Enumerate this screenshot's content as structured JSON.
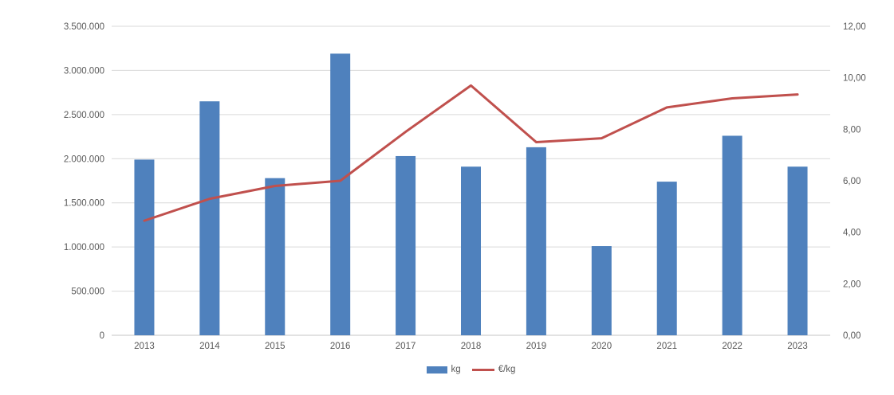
{
  "chart_data": {
    "type": "bar",
    "subtype": "combo-bar-line",
    "title": "",
    "xlabel": "",
    "ylabel_left": "kg",
    "ylabel_right": "€/kg",
    "categories": [
      "2013",
      "2014",
      "2015",
      "2016",
      "2017",
      "2018",
      "2019",
      "2020",
      "2021",
      "2022",
      "2023"
    ],
    "series": [
      {
        "name": "kg",
        "type": "bar",
        "axis": "left",
        "color": "#4f81bd",
        "values": [
          1990000,
          2650000,
          1780000,
          3190000,
          2030000,
          1910000,
          2130000,
          1010000,
          1740000,
          2260000,
          1910000
        ]
      },
      {
        "name": "€/kg",
        "type": "line",
        "axis": "right",
        "color": "#c0504d",
        "values": [
          4.45,
          5.3,
          5.8,
          6.0,
          7.9,
          9.7,
          7.5,
          7.65,
          8.85,
          9.2,
          9.35
        ]
      }
    ],
    "left_axis": {
      "min": 0,
      "max": 3500000,
      "step": 500000,
      "tick_labels": [
        "0",
        "500.000",
        "1.000.000",
        "1.500.000",
        "2.000.000",
        "2.500.000",
        "3.000.000",
        "3.500.000"
      ]
    },
    "right_axis": {
      "min": 0,
      "max": 12,
      "step": 2,
      "tick_labels": [
        "0,00",
        "2,00",
        "4,00",
        "6,00",
        "8,00",
        "10,00",
        "12,00"
      ]
    },
    "grid": "horizontal",
    "gridline_color": "#d9d9d9",
    "axisline_color": "#c6c6c6",
    "text_color": "#595959",
    "legend": {
      "position": "bottom-center",
      "items": [
        {
          "label": "kg",
          "marker": "bar",
          "color": "#4f81bd"
        },
        {
          "label": "€/kg",
          "marker": "line",
          "color": "#c0504d"
        }
      ]
    }
  }
}
